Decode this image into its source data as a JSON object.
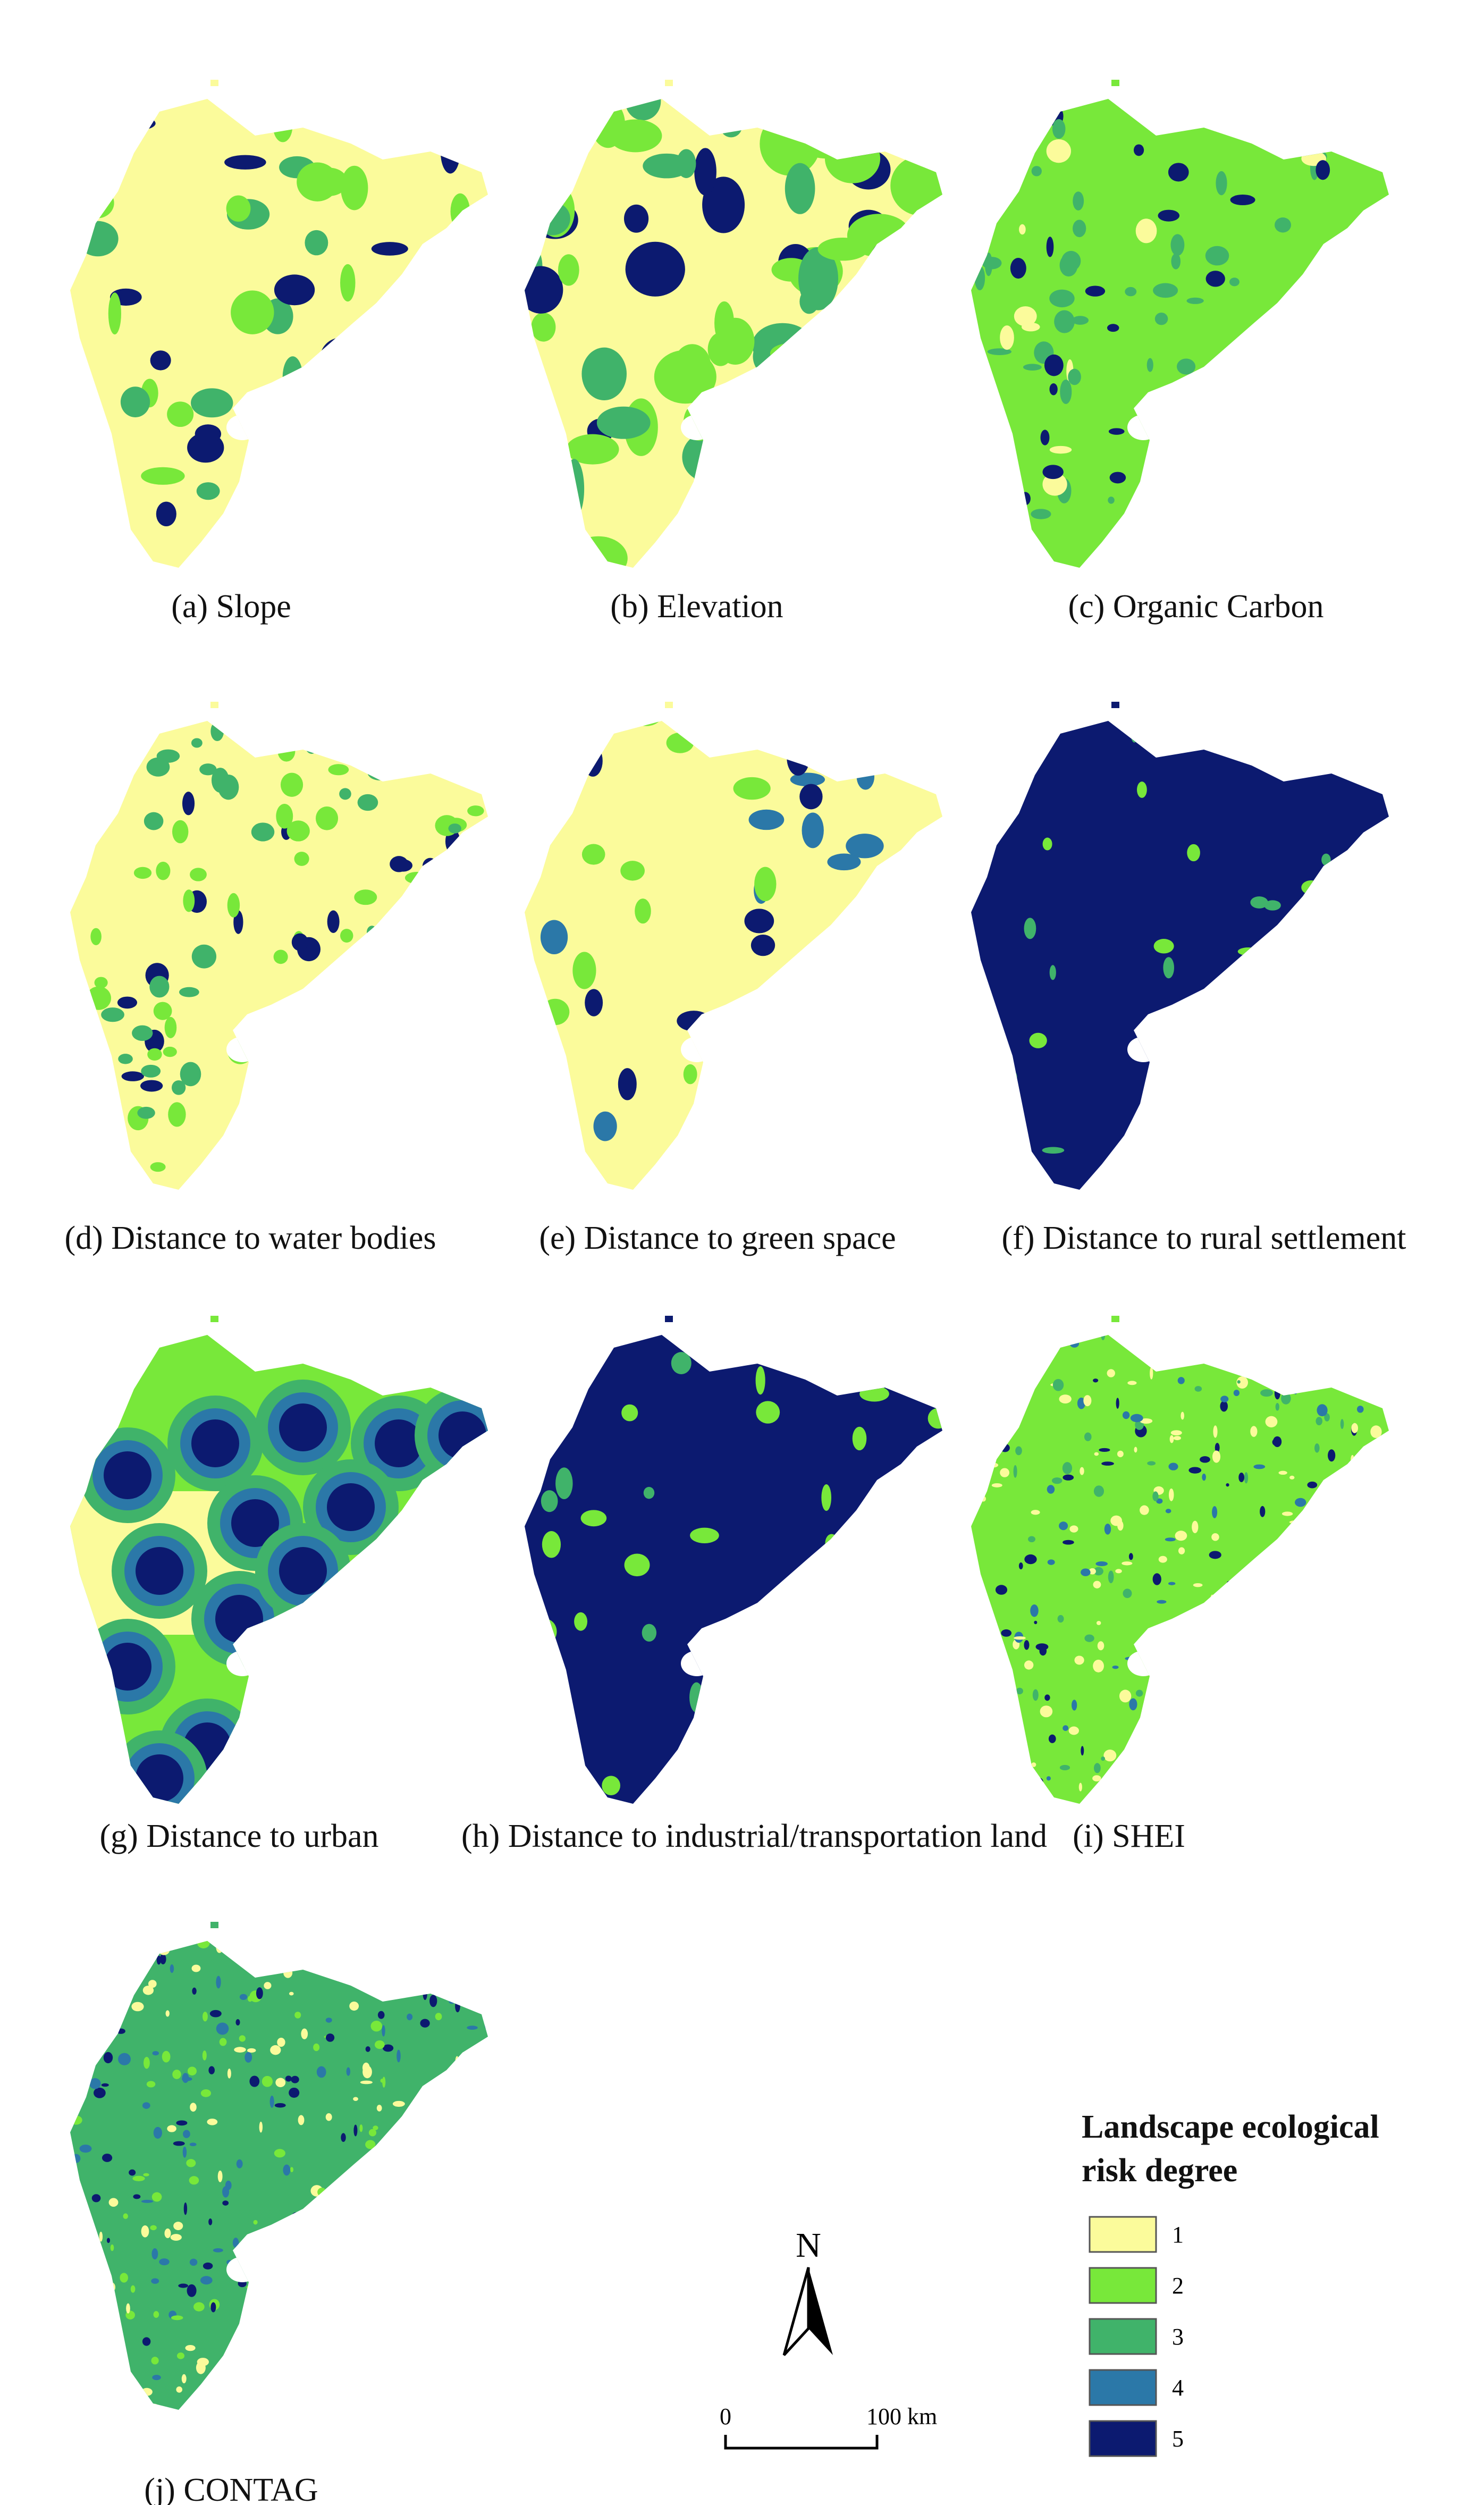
{
  "panels": [
    {
      "label": "(a) Slope"
    },
    {
      "label": "(b) Elevation"
    },
    {
      "label": "(c) Organic Carbon"
    },
    {
      "label": "(d) Distance to water bodies"
    },
    {
      "label": "(e) Distance to green space"
    },
    {
      "label": "(f) Distance to rural settlement"
    },
    {
      "label": "(g) Distance to urban"
    },
    {
      "label": "(h) Distance to industrial/transportation land"
    },
    {
      "label": "(i) SHEI"
    },
    {
      "label": "(j) CONTAG"
    }
  ],
  "legend": {
    "title": "Landscape ecological risk degree",
    "items": [
      {
        "label": "1",
        "color": "#fbfb9b"
      },
      {
        "label": "2",
        "color": "#78e83a"
      },
      {
        "label": "3",
        "color": "#40b36a"
      },
      {
        "label": "4",
        "color": "#2b78a8"
      },
      {
        "label": "5",
        "color": "#0c1a70"
      }
    ]
  },
  "north": "N",
  "scale_bar": {
    "start": "0",
    "end": "100 km"
  }
}
